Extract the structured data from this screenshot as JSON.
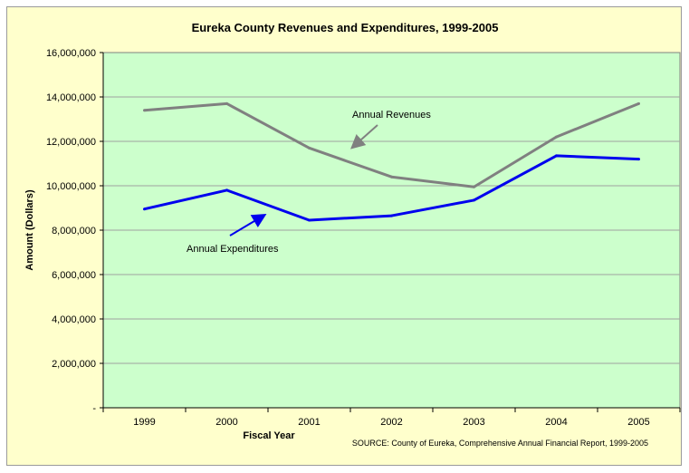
{
  "chart_data": {
    "type": "line",
    "title": "Eureka County Revenues and Expenditures, 1999-2005",
    "xlabel": "Fiscal Year",
    "ylabel": "Amount (Dollars)",
    "categories": [
      "1999",
      "2000",
      "2001",
      "2002",
      "2003",
      "2004",
      "2005"
    ],
    "ylim": [
      0,
      16000000
    ],
    "y_ticks": [
      0,
      2000000,
      4000000,
      6000000,
      8000000,
      10000000,
      12000000,
      14000000,
      16000000
    ],
    "y_tick_labels": [
      "-",
      "2,000,000",
      "4,000,000",
      "6,000,000",
      "8,000,000",
      "10,000,000",
      "12,000,000",
      "14,000,000",
      "16,000,000"
    ],
    "grid": true,
    "plot_background": "#ccffcc",
    "series": [
      {
        "name": "Annual Revenues",
        "color": "#808080",
        "values": [
          13400000,
          13700000,
          11700000,
          10400000,
          9950000,
          12200000,
          13700000
        ]
      },
      {
        "name": "Annual Expenditures",
        "color": "#0000ee",
        "values": [
          8950000,
          9800000,
          8450000,
          8650000,
          9350000,
          11350000,
          11200000
        ]
      }
    ],
    "annotations": [
      "Annual Revenues",
      "Annual Expenditures"
    ],
    "source_note": "SOURCE: County of Eureka, Comprehensive Annual Financial Report, 1999-2005"
  }
}
